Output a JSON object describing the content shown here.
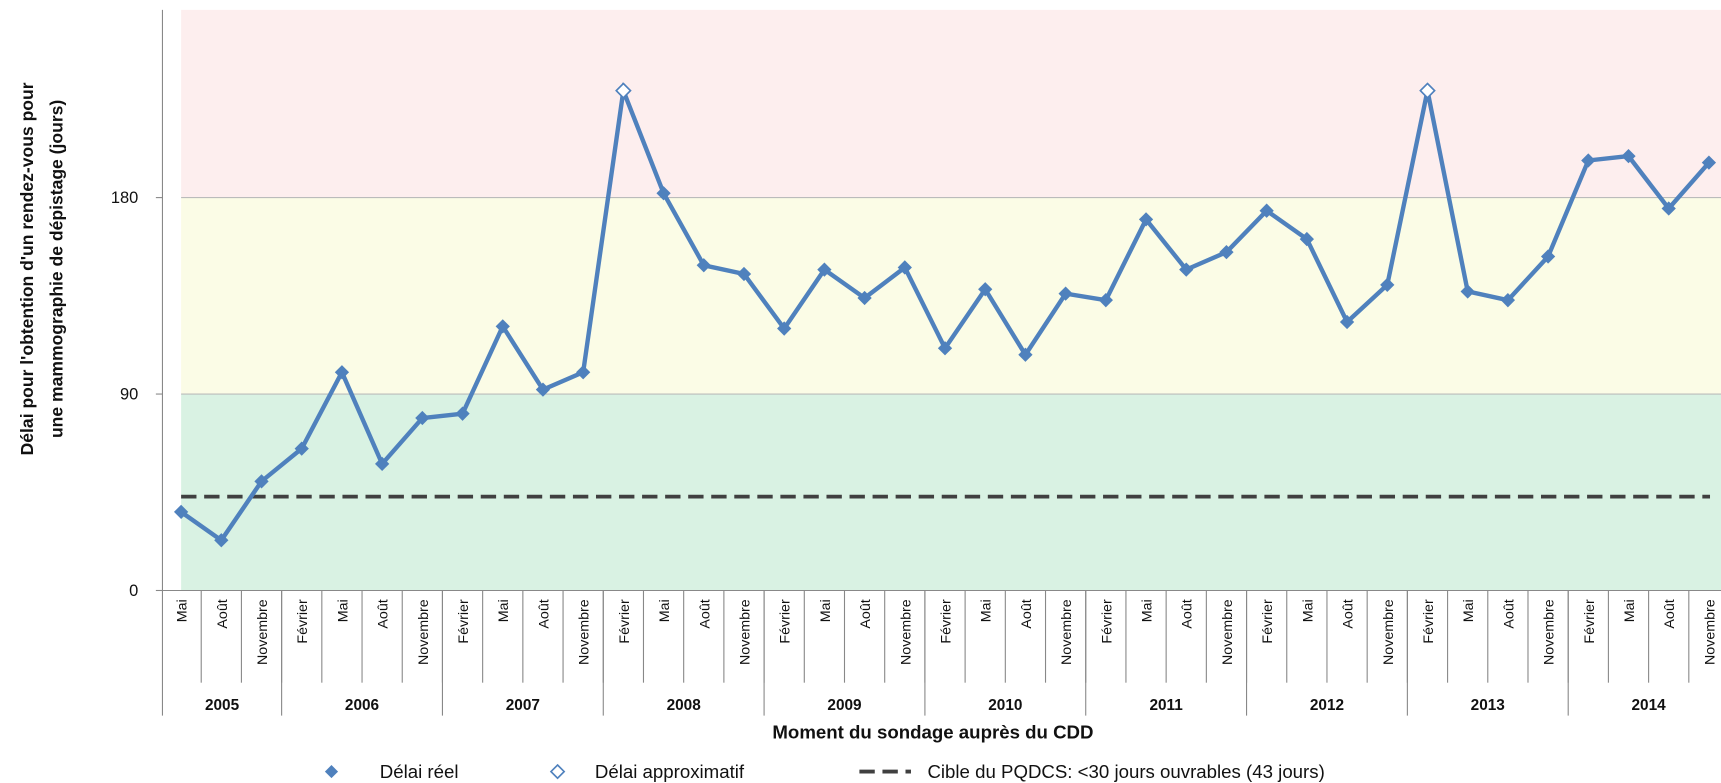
{
  "chart_data": {
    "type": "line",
    "y_label": [
      "Délai pour l'obtention d'un rendez-vous pour",
      "une mammographie de dépistage  (jours)"
    ],
    "x_label": "Moment du sondage auprès du CDD",
    "categories": [
      "Mai",
      "Août",
      "Novembre",
      "Février",
      "Mai",
      "Août",
      "Novembre",
      "Février",
      "Mai",
      "Août",
      "Novembre",
      "Février",
      "Mai",
      "Août",
      "Novembre",
      "Février",
      "Mai",
      "Août",
      "Novembre",
      "Février",
      "Mai",
      "Août",
      "Novembre",
      "Février",
      "Mai",
      "Août",
      "Novembre",
      "Février",
      "Mai",
      "Août",
      "Novembre",
      "Février",
      "Mai",
      "Août",
      "Novembre",
      "Février",
      "Mai",
      "Août",
      "Novembre"
    ],
    "year_groups": [
      {
        "label": "2005",
        "count": 3
      },
      {
        "label": "2006",
        "count": 4
      },
      {
        "label": "2007",
        "count": 4
      },
      {
        "label": "2008",
        "count": 4
      },
      {
        "label": "2009",
        "count": 4
      },
      {
        "label": "2010",
        "count": 4
      },
      {
        "label": "2011",
        "count": 4
      },
      {
        "label": "2012",
        "count": 4
      },
      {
        "label": "2013",
        "count": 4
      },
      {
        "label": "2014",
        "count": 4
      }
    ],
    "series": [
      {
        "name": "Délai réel",
        "color": "#4f81bd",
        "values": [
          36,
          23,
          50,
          65,
          100,
          58,
          79,
          81,
          121,
          92,
          100,
          229,
          182,
          149,
          145,
          120,
          147,
          134,
          148,
          111,
          138,
          108,
          136,
          133,
          170,
          147,
          155,
          174,
          161,
          123,
          140,
          229,
          137,
          133,
          153,
          197,
          199,
          175,
          196
        ]
      },
      {
        "name": "Délai approximatif",
        "color": "#4f81bd",
        "values": [
          null,
          null,
          null,
          null,
          null,
          null,
          null,
          null,
          null,
          null,
          null,
          229,
          null,
          null,
          null,
          null,
          null,
          null,
          null,
          null,
          null,
          null,
          null,
          null,
          null,
          null,
          null,
          null,
          null,
          null,
          null,
          229,
          null,
          null,
          null,
          null,
          null,
          null,
          null
        ]
      }
    ],
    "target": {
      "name": "Cible du PQDCS: <30 jours ouvrables (43 jours)",
      "value": 43,
      "color": "#404040"
    },
    "bands": [
      {
        "from": 0,
        "to": 90,
        "color": "#d9f2e3"
      },
      {
        "from": 90,
        "to": 180,
        "color": "#fbfce6"
      },
      {
        "from": 180,
        "to": 266,
        "color": "#fdeeee"
      }
    ],
    "ylim": [
      0,
      266
    ],
    "yticks": [
      0,
      90,
      180
    ]
  }
}
